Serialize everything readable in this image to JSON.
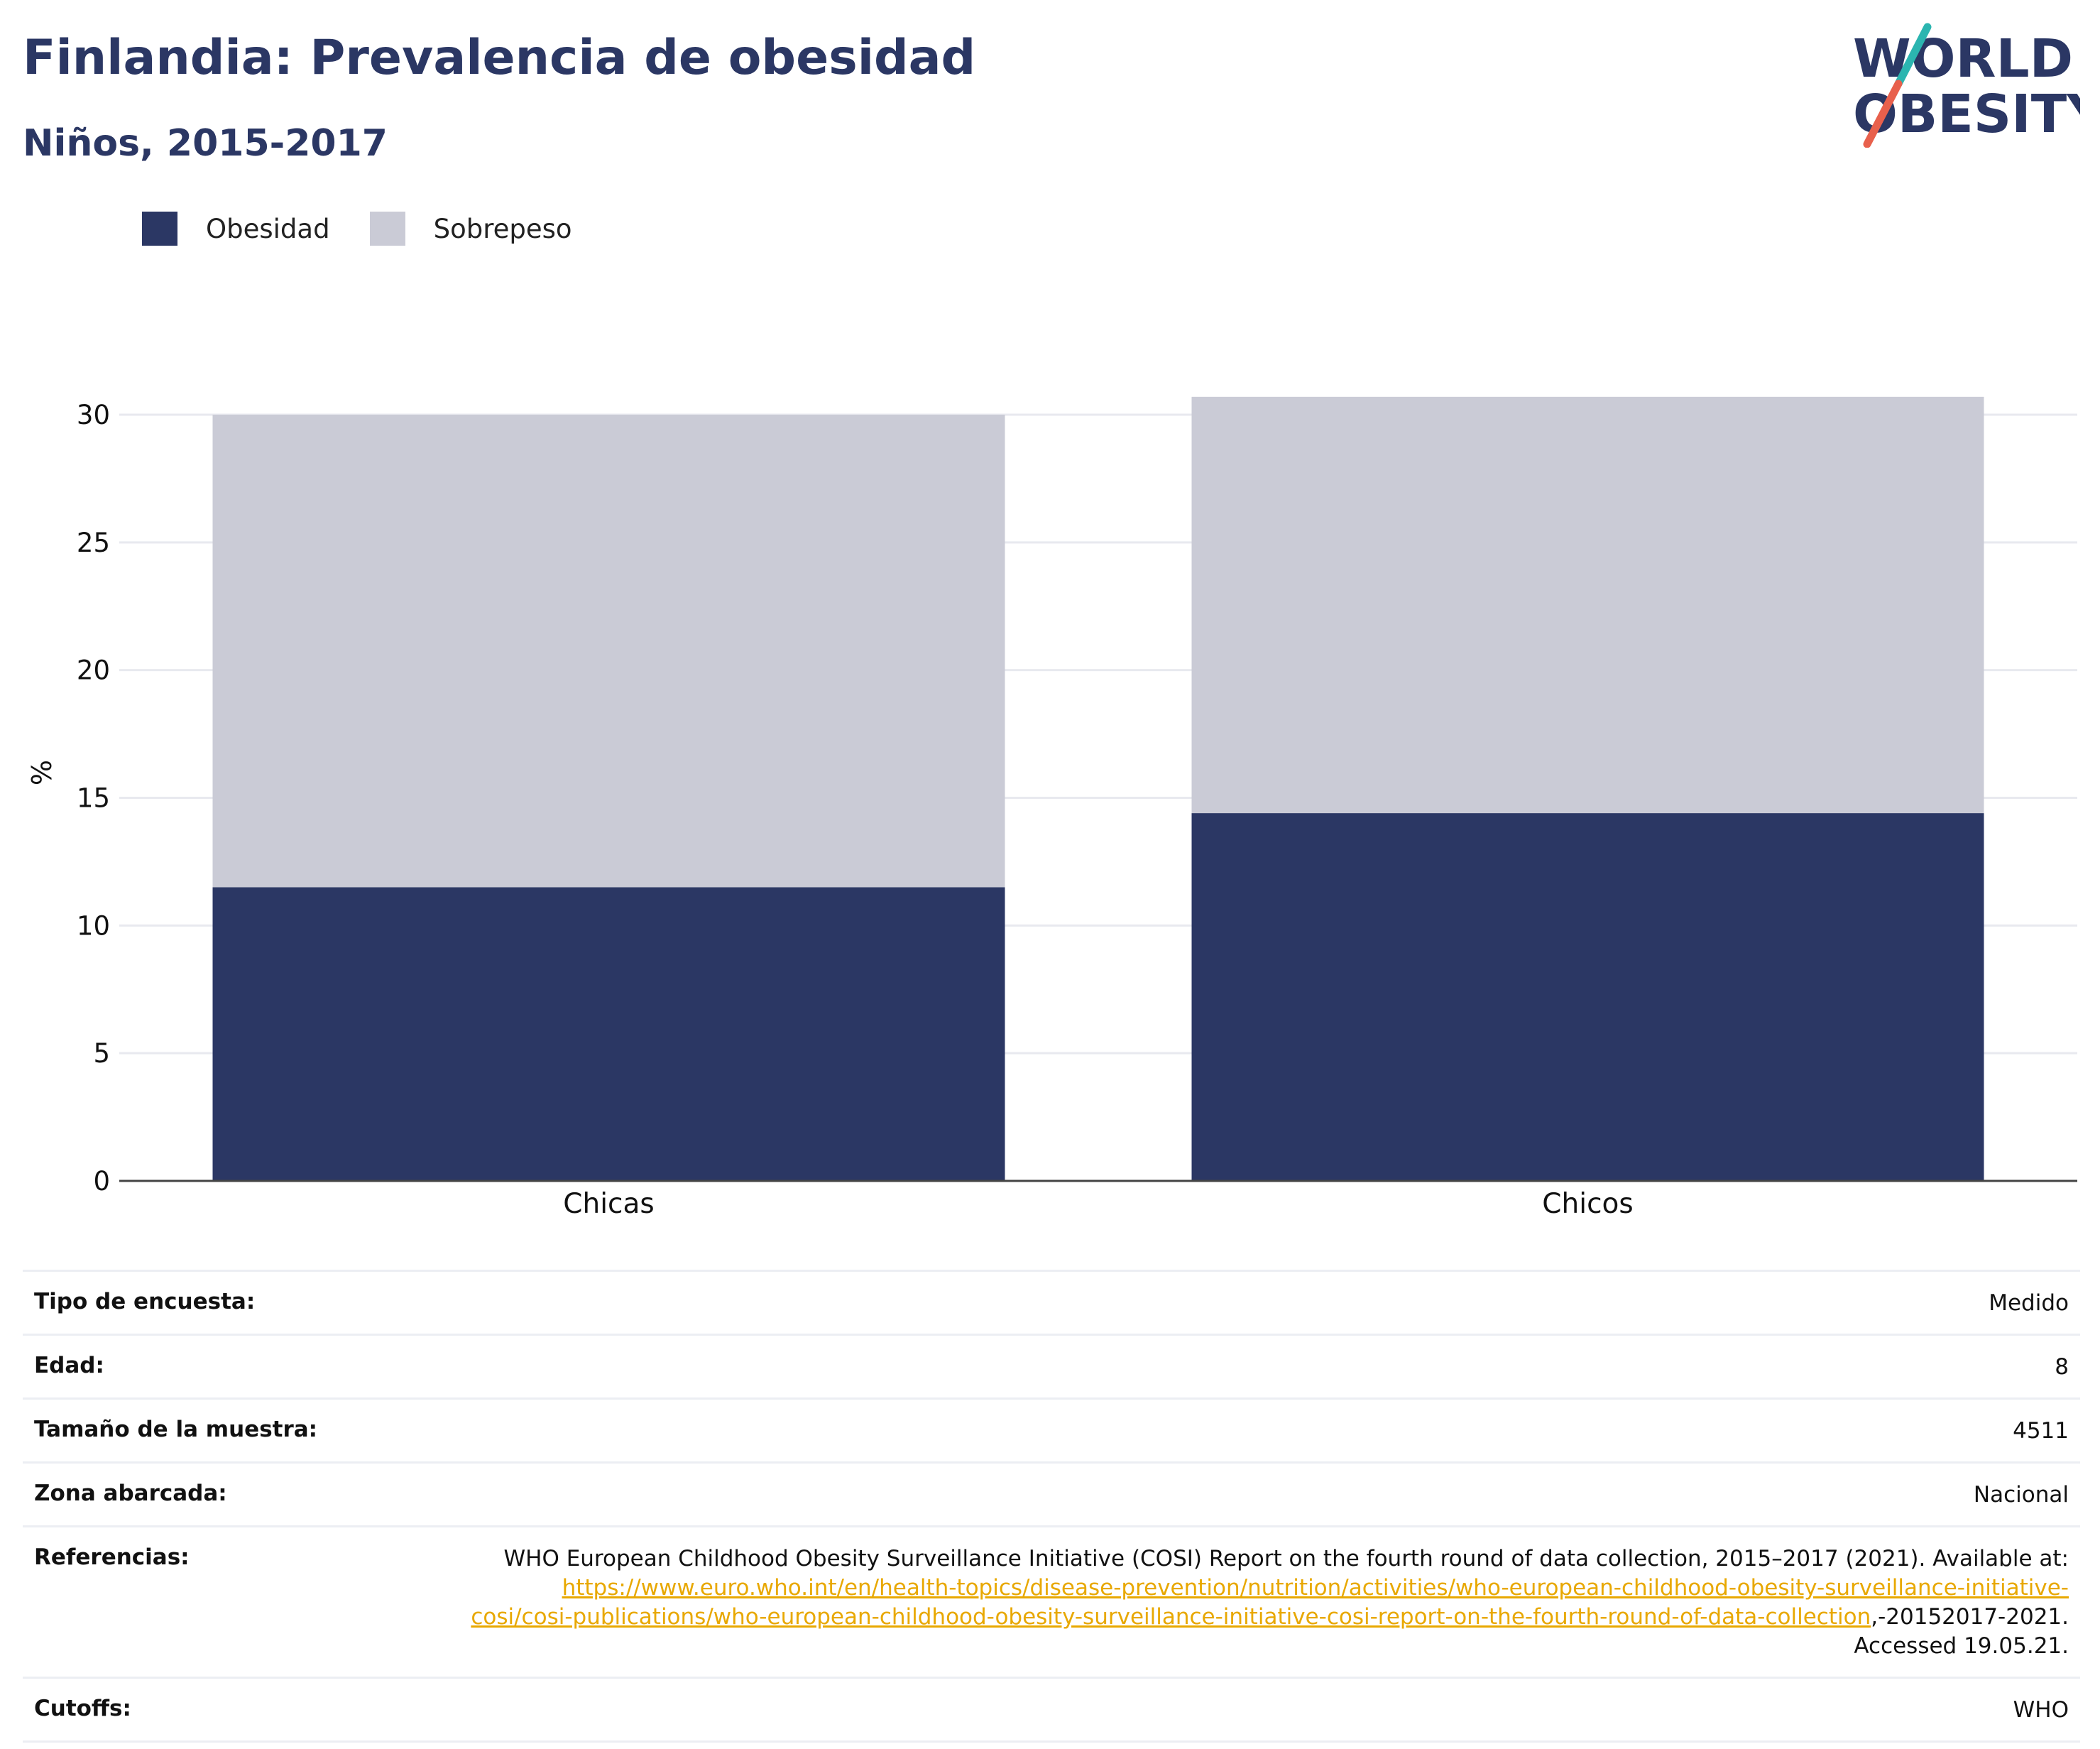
{
  "header": {
    "title": "Finlandia: Prevalencia de obesidad",
    "subtitle": "Niños, 2015-2017"
  },
  "logo": {
    "line1": "WORLD",
    "line2": "OBESITY",
    "colors": {
      "text": "#2b3764",
      "slash_teal": "#2bb5b0",
      "slash_coral": "#e8604c"
    }
  },
  "legend": {
    "items": [
      {
        "label": "Obesidad",
        "color": "#2b3764"
      },
      {
        "label": "Sobrepeso",
        "color": "#cacbd6"
      }
    ]
  },
  "chart_data": {
    "type": "bar",
    "stacked": true,
    "categories": [
      "Chicas",
      "Chicos"
    ],
    "series": [
      {
        "name": "Obesidad",
        "values": [
          11.5,
          14.4
        ],
        "color": "#2b3764"
      },
      {
        "name": "Sobrepeso",
        "values": [
          18.5,
          16.3
        ],
        "color": "#cacbd6"
      }
    ],
    "ylabel": "%",
    "ylim": [
      0,
      30.9
    ],
    "yticks": [
      0,
      5,
      10,
      15,
      20,
      25,
      30
    ],
    "grid": true,
    "legend_position": "top-left"
  },
  "info": {
    "rows": [
      {
        "label": "Tipo de encuesta:",
        "value": "Medido"
      },
      {
        "label": "Edad:",
        "value": "8"
      },
      {
        "label": "Tamaño de la muestra:",
        "value": "4511"
      },
      {
        "label": "Zona abarcada:",
        "value": "Nacional"
      }
    ],
    "references": {
      "label": "Referencias:",
      "text_before": "WHO European Childhood Obesity Surveillance Initiative (COSI) Report on the fourth round of data collection, 2015–2017 (2021). Available at: ",
      "link": "https://www.euro.who.int/en/health-topics/disease-prevention/nutrition/activities/who-european-childhood-obesity-surveillance-initiative-cosi/cosi-publications/who-european-childhood-obesity-surveillance-initiative-cosi-report-on-the-fourth-round-of-data-collection",
      "text_after": ",-20152017-2021. Accessed 19.05.21."
    },
    "cutoffs": {
      "label": "Cutoffs:",
      "value": "WHO"
    }
  }
}
